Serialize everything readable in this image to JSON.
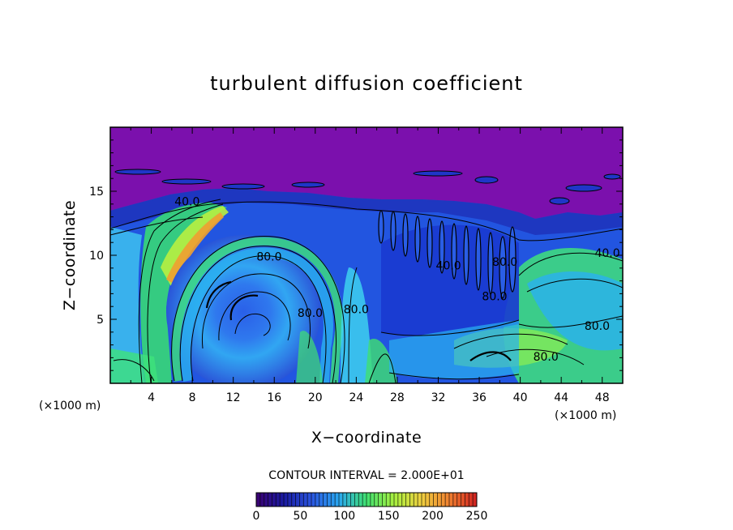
{
  "chart_data": {
    "type": "heatmap",
    "title": "turbulent diffusion coefficient",
    "xlabel": "X−coordinate",
    "ylabel": "Z−coordinate",
    "x_unit_left": "(×1000 m)",
    "x_unit_right": "(×1000 m)",
    "xlim": [
      0,
      50
    ],
    "ylim": [
      0,
      20
    ],
    "x_ticks": [
      4,
      8,
      12,
      16,
      20,
      24,
      28,
      32,
      36,
      40,
      44,
      48
    ],
    "y_ticks": [
      5,
      10,
      15
    ],
    "contour_interval_text": "CONTOUR INTERVAL = 2.000E+01",
    "contour_interval": 20,
    "contour_labels": [
      {
        "text": "40.0",
        "x": 7.5,
        "y": 14.2
      },
      {
        "text": "80.0",
        "x": 15.5,
        "y": 9.9
      },
      {
        "text": "80.0",
        "x": 24.0,
        "y": 5.8
      },
      {
        "text": "80.0",
        "x": 19.5,
        "y": 5.5
      },
      {
        "text": "40.0",
        "x": 33.0,
        "y": 9.2
      },
      {
        "text": "80.0",
        "x": 37.5,
        "y": 6.8
      },
      {
        "text": "40.0",
        "x": 48.5,
        "y": 10.2
      },
      {
        "text": "80.0",
        "x": 47.5,
        "y": 4.5
      },
      {
        "text": "80.0",
        "x": 42.5,
        "y": 2.1
      },
      {
        "text": "80.0",
        "x": 38.5,
        "y": 9.5
      }
    ],
    "colorbar": {
      "min": 0,
      "max": 250,
      "ticks": [
        0,
        50,
        100,
        150,
        200,
        250
      ],
      "colormap": [
        "#3a0070",
        "#1a1aa0",
        "#2a55e0",
        "#2aa8f0",
        "#40e070",
        "#a8f040",
        "#f0d040",
        "#f08030",
        "#d02020"
      ]
    },
    "colors": {
      "high_background": "#7b10ad",
      "mid_background": "#2255e0"
    }
  }
}
